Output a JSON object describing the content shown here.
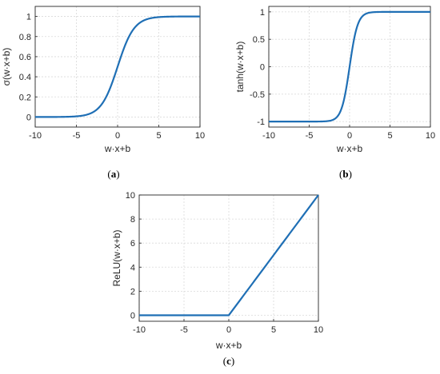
{
  "chart_data": [
    {
      "type": "line",
      "caption": "(a)",
      "xlabel": "w·x+b",
      "ylabel": "σ(w·x+b)",
      "xlim": [
        -10,
        10
      ],
      "ylim": [
        -0.1,
        1.1
      ],
      "xticks": [
        -10,
        -5,
        0,
        5,
        10
      ],
      "yticks": [
        0,
        0.2,
        0.4,
        0.6,
        0.8,
        1
      ],
      "ytick_labels": [
        "0",
        "0.2",
        "0.4",
        "0.6",
        "0.8",
        "1"
      ],
      "grid": true,
      "color": "#1f6fb5",
      "function": "sigmoid",
      "x": [
        -10,
        -8,
        -6,
        -5,
        -4,
        -3,
        -2,
        -1.5,
        -1,
        -0.5,
        0,
        0.5,
        1,
        1.5,
        2,
        3,
        4,
        5,
        6,
        8,
        10
      ],
      "y": [
        4.54e-05,
        0.000335,
        0.00247,
        0.00669,
        0.018,
        0.0474,
        0.119,
        0.182,
        0.269,
        0.378,
        0.5,
        0.622,
        0.731,
        0.818,
        0.881,
        0.953,
        0.982,
        0.993,
        0.998,
        0.99966,
        0.99995
      ]
    },
    {
      "type": "line",
      "caption": "(b)",
      "xlabel": "w·x+b",
      "ylabel": "tanh(w·x+b)",
      "xlim": [
        -10,
        10
      ],
      "ylim": [
        -1.1,
        1.1
      ],
      "xticks": [
        -10,
        -5,
        0,
        5,
        10
      ],
      "yticks": [
        -1,
        -0.5,
        0,
        0.5,
        1
      ],
      "ytick_labels": [
        "-1",
        "-0.5",
        "0",
        "0.5",
        "1"
      ],
      "grid": true,
      "color": "#1f6fb5",
      "function": "tanh",
      "x": [
        -10,
        -5,
        -3,
        -2,
        -1.5,
        -1,
        -0.5,
        0,
        0.5,
        1,
        1.5,
        2,
        3,
        5,
        10
      ],
      "y": [
        -1,
        -0.9999,
        -0.995,
        -0.964,
        -0.905,
        -0.762,
        -0.462,
        0,
        0.462,
        0.762,
        0.905,
        0.964,
        0.995,
        0.9999,
        1
      ]
    },
    {
      "type": "line",
      "caption": "(c)",
      "xlabel": "w·x+b",
      "ylabel": "ReLU(w·x+b)",
      "xlim": [
        -10,
        10
      ],
      "ylim": [
        -0.5,
        10
      ],
      "xticks": [
        -10,
        -5,
        0,
        5,
        10
      ],
      "yticks": [
        0,
        2,
        4,
        6,
        8,
        10
      ],
      "ytick_labels": [
        "0",
        "2",
        "4",
        "6",
        "8",
        "10"
      ],
      "grid": true,
      "color": "#1f6fb5",
      "function": "relu",
      "x": [
        -10,
        0,
        10
      ],
      "y": [
        0,
        0,
        10
      ]
    }
  ]
}
